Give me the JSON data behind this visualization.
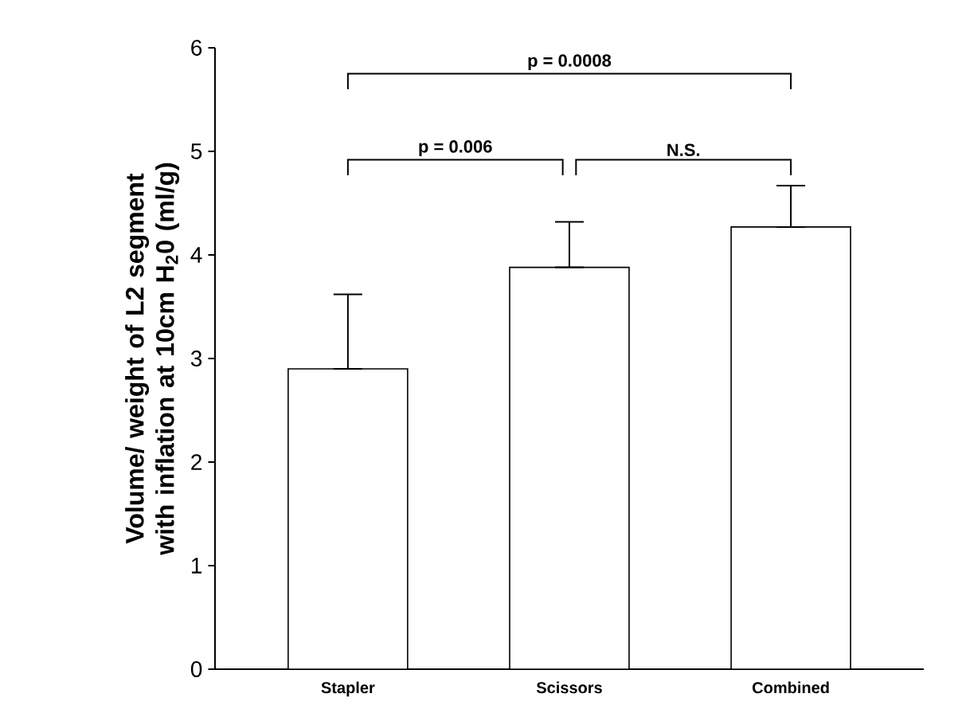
{
  "chart_data": {
    "type": "bar",
    "ylabel": "Volume/ weight of L2 segment with inflation at 10cm H$_{2}$0 (ml/g)",
    "categories": [
      "Stapler",
      "Scissors",
      "Combined"
    ],
    "values": [
      2.9,
      3.88,
      4.27
    ],
    "errors": [
      [
        2.9,
        3.62
      ],
      [
        3.88,
        4.32
      ],
      [
        4.27,
        4.67
      ]
    ],
    "color": "#ffffff",
    "ylim": [
      0,
      6
    ],
    "yticks": [
      0,
      1,
      2,
      3,
      4,
      5,
      6
    ],
    "annotations": [
      "p = 0.0008",
      "p = 0.006",
      "N.S."
    ],
    "grid": false
  }
}
